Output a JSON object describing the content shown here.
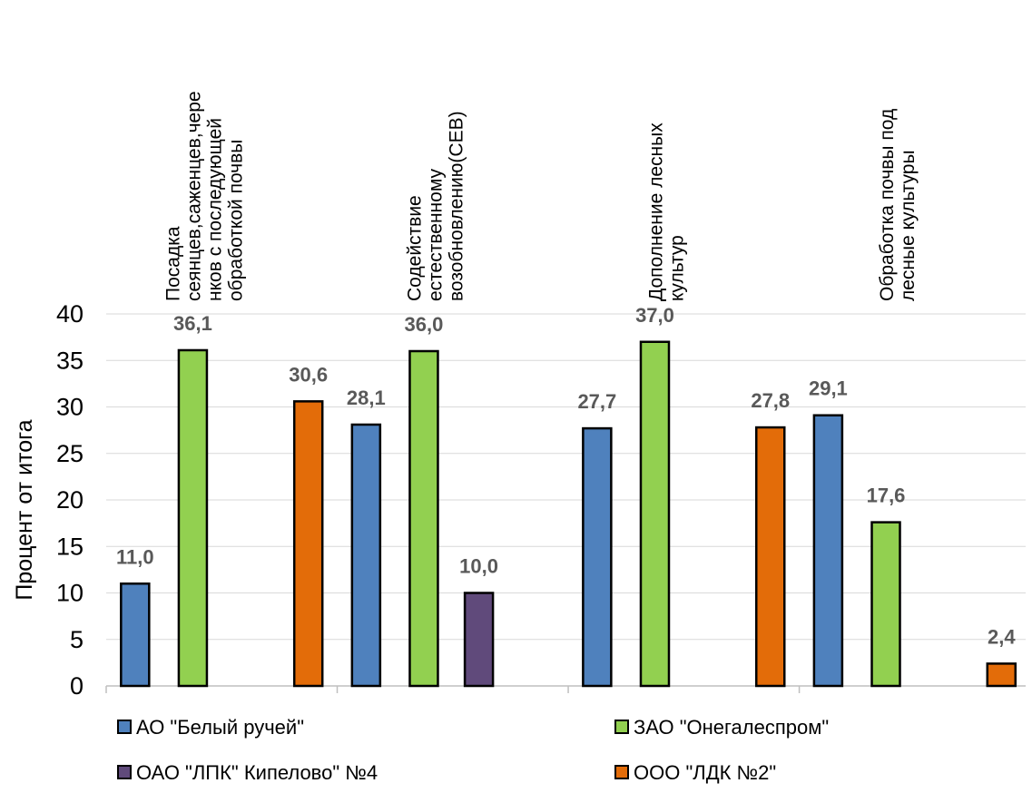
{
  "chart_data": {
    "type": "bar",
    "title": "",
    "xlabel": "",
    "ylabel": "Процент от итога",
    "ylim": [
      0,
      40
    ],
    "yticks": [
      0,
      5,
      10,
      15,
      20,
      25,
      30,
      35,
      40
    ],
    "grid": true,
    "legend_position": "bottom",
    "value_format": "one-decimal-comma",
    "categories": [
      [
        "Посадка",
        "сеянцев,саженцев,чере",
        "нков с последующей",
        "обработкой почвы"
      ],
      [
        "Содействие",
        "естественному",
        "возобновлению(СЕВ)"
      ],
      [
        "Дополнение лесных",
        "культур"
      ],
      [
        "Обработка почвы под",
        "лесные культуры"
      ]
    ],
    "series": [
      {
        "name": "АО \"Белый ручей\"",
        "color": "#4f81bd",
        "values": [
          11.0,
          28.1,
          27.7,
          29.1
        ]
      },
      {
        "name": "ЗАО \"Онегалеспром\"",
        "color": "#92d050",
        "values": [
          36.1,
          36.0,
          37.0,
          17.6
        ]
      },
      {
        "name": "ОАО \"ЛПК\" Кипелово\" №4",
        "color": "#604a7b",
        "values": [
          null,
          10.0,
          null,
          null
        ]
      },
      {
        "name": "ООО \"ЛДК №2\"",
        "color": "#e36c09",
        "values": [
          30.6,
          null,
          27.8,
          2.4
        ]
      }
    ]
  }
}
